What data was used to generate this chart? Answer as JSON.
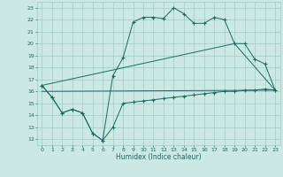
{
  "title": "",
  "xlabel": "Humidex (Indice chaleur)",
  "ylabel": "",
  "bg_color": "#cce8e4",
  "line_color": "#1a6b60",
  "xlim": [
    -0.5,
    23.5
  ],
  "ylim": [
    11.5,
    23.5
  ],
  "xticks": [
    0,
    1,
    2,
    3,
    4,
    5,
    6,
    7,
    8,
    9,
    10,
    11,
    12,
    13,
    14,
    15,
    16,
    17,
    18,
    19,
    20,
    21,
    22,
    23
  ],
  "yticks": [
    12,
    13,
    14,
    15,
    16,
    17,
    18,
    19,
    20,
    21,
    22,
    23
  ],
  "grid_color": "#9eccc7",
  "series": [
    {
      "x": [
        0,
        1,
        2,
        3,
        4,
        5,
        6,
        7,
        8,
        9,
        10,
        11,
        12,
        13,
        14,
        15,
        16,
        17,
        18,
        19,
        20,
        21,
        22,
        23
      ],
      "y": [
        16.5,
        15.5,
        14.2,
        14.5,
        14.2,
        12.5,
        11.9,
        13.0,
        15.0,
        15.1,
        15.2,
        15.3,
        15.4,
        15.5,
        15.6,
        15.7,
        15.8,
        15.9,
        16.0,
        16.0,
        16.1,
        16.1,
        16.2,
        16.1
      ],
      "markers": true
    },
    {
      "x": [
        0,
        1,
        2,
        3,
        4,
        5,
        6,
        7,
        8,
        9,
        10,
        11,
        12,
        13,
        14,
        15,
        16,
        17,
        18,
        19,
        20,
        21,
        22,
        23
      ],
      "y": [
        16.5,
        15.5,
        14.2,
        14.5,
        14.2,
        12.5,
        11.9,
        17.3,
        18.8,
        21.8,
        22.2,
        22.2,
        22.1,
        23.0,
        22.5,
        21.7,
        21.7,
        22.2,
        22.0,
        20.0,
        20.0,
        18.7,
        18.3,
        16.1
      ],
      "markers": true
    },
    {
      "x": [
        0,
        23
      ],
      "y": [
        16.0,
        16.1
      ],
      "markers": false
    },
    {
      "x": [
        0,
        19,
        23
      ],
      "y": [
        16.5,
        20.0,
        16.1
      ],
      "markers": false
    }
  ]
}
